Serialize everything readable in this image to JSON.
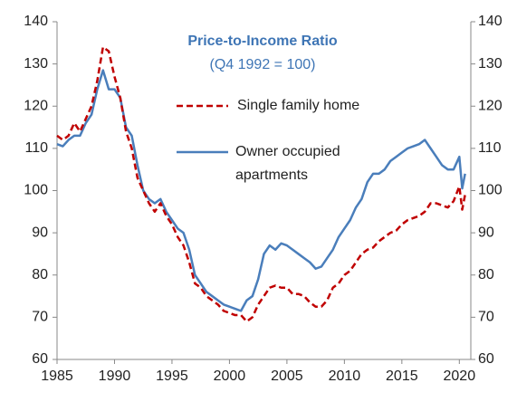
{
  "chart_data": {
    "type": "line",
    "title": "Price-to-Income Ratio",
    "subtitle": "(Q4 1992 = 100)",
    "x": [
      1985,
      1985.5,
      1986,
      1986.5,
      1987,
      1987.5,
      1988,
      1988.5,
      1989,
      1989.5,
      1990,
      1990.5,
      1991,
      1991.5,
      1992,
      1992.5,
      1993,
      1993.5,
      1994,
      1994.5,
      1995,
      1995.5,
      1996,
      1996.5,
      1997,
      1997.5,
      1998,
      1998.5,
      1999,
      1999.5,
      2000,
      2000.5,
      2001,
      2001.5,
      2002,
      2002.5,
      2003,
      2003.5,
      2004,
      2004.5,
      2005,
      2005.5,
      2006,
      2006.5,
      2007,
      2007.5,
      2008,
      2008.5,
      2009,
      2009.5,
      2010,
      2010.5,
      2011,
      2011.5,
      2012,
      2012.5,
      2013,
      2013.5,
      2014,
      2014.5,
      2015,
      2015.5,
      2016,
      2016.5,
      2017,
      2017.5,
      2018,
      2018.5,
      2019,
      2019.5,
      2020,
      2020.25,
      2020.5
    ],
    "series": [
      {
        "name": "Single family home",
        "color": "#c00000",
        "dashed": true,
        "values": [
          113,
          112,
          113,
          116,
          114,
          117,
          120,
          126,
          134,
          133,
          127,
          122,
          114,
          110,
          103,
          100,
          97,
          95,
          97,
          94,
          92,
          89,
          87,
          83,
          78,
          77,
          75,
          74,
          73,
          71.5,
          71,
          70.5,
          70.5,
          69,
          70,
          73,
          75,
          77,
          77.5,
          77,
          77,
          75.5,
          75.5,
          75,
          73.5,
          72.5,
          72.5,
          74,
          77,
          78,
          80,
          81,
          83,
          85,
          86,
          86.5,
          88,
          89,
          90,
          90.5,
          92,
          93,
          93.5,
          94,
          95,
          97,
          97,
          96.5,
          96,
          97.5,
          101,
          95.5,
          99
        ]
      },
      {
        "name": "Owner occupied apartments",
        "color": "#4a7ebb",
        "dashed": false,
        "values": [
          111,
          110.5,
          112,
          113,
          113,
          116,
          118,
          124,
          128.5,
          124,
          124,
          122,
          115,
          113,
          106,
          100,
          98,
          97,
          98,
          95,
          93,
          91,
          90,
          86,
          80,
          78,
          76,
          75,
          74,
          73,
          72.5,
          72,
          71.5,
          74,
          75,
          79,
          85,
          87,
          86,
          87.5,
          87,
          86,
          85,
          84,
          83,
          81.5,
          82,
          84,
          86,
          89,
          91,
          93,
          96,
          98,
          102,
          104,
          104,
          105,
          107,
          108,
          109,
          110,
          110.5,
          111,
          112,
          110,
          108,
          106,
          105,
          105,
          108,
          100.5,
          104
        ]
      }
    ],
    "xlim": [
      1985,
      2021
    ],
    "xticks": [
      1985,
      1990,
      1995,
      2000,
      2005,
      2010,
      2015,
      2020
    ],
    "ylim": [
      60,
      140
    ],
    "yticks": [
      60,
      70,
      80,
      90,
      100,
      110,
      120,
      130,
      140
    ],
    "y2lim": [
      60,
      140
    ],
    "y2ticks": [
      60,
      70,
      80,
      90,
      100,
      110,
      120,
      130,
      140
    ],
    "grid": false
  }
}
